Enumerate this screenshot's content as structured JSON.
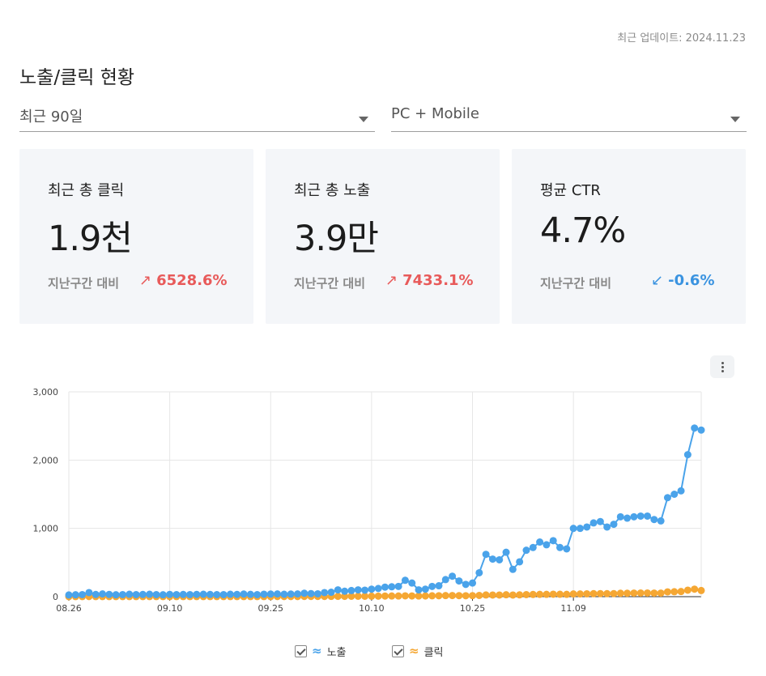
{
  "header": {
    "updated_label": "최근 업데이트:",
    "updated_value": "2024.11.23",
    "title": "노출/클릭 현황"
  },
  "filters": {
    "period": "최근 90일",
    "device": "PC + Mobile"
  },
  "cards": [
    {
      "label": "최근 총 클릭",
      "value": "1.9천",
      "compare_label": "지난구간 대비",
      "delta": "6528.6%",
      "direction": "up",
      "arrow": "↗"
    },
    {
      "label": "최근 총 노출",
      "value": "3.9만",
      "compare_label": "지난구간 대비",
      "delta": "7433.1%",
      "direction": "up",
      "arrow": "↗"
    },
    {
      "label": "평균 CTR",
      "value": "4.7%",
      "compare_label": "지난구간 대비",
      "delta": "-0.6%",
      "direction": "down",
      "arrow": "↙"
    }
  ],
  "colors": {
    "impressions": "#4aa3ea",
    "clicks": "#f5a733",
    "up": "#e85a5a",
    "down": "#3a93e0"
  },
  "legend": [
    {
      "label": "노출",
      "icon": "wave-icon",
      "checked": true
    },
    {
      "label": "클릭",
      "icon": "wave-icon",
      "checked": true
    }
  ],
  "chart_data": {
    "type": "line",
    "x_tick_labels": [
      "08.26",
      "09.10",
      "09.25",
      "10.10",
      "10.25",
      "11.09"
    ],
    "y_tick_labels": [
      "0",
      "1,000",
      "2,000",
      "3,000"
    ],
    "ylim": [
      0,
      3000
    ],
    "grid": true,
    "legend_position": "bottom-center",
    "series": [
      {
        "name": "노출",
        "values": [
          25,
          28,
          30,
          60,
          32,
          40,
          33,
          28,
          30,
          35,
          30,
          32,
          35,
          30,
          28,
          33,
          30,
          32,
          30,
          33,
          35,
          32,
          30,
          30,
          35,
          33,
          38,
          34,
          30,
          36,
          38,
          40,
          35,
          38,
          40,
          50,
          45,
          42,
          60,
          65,
          100,
          80,
          90,
          100,
          95,
          110,
          120,
          140,
          145,
          150,
          240,
          200,
          100,
          110,
          150,
          160,
          250,
          300,
          230,
          180,
          200,
          350,
          620,
          550,
          540,
          650,
          400,
          510,
          680,
          720,
          800,
          760,
          820,
          720,
          700,
          1000,
          1000,
          1020,
          1080,
          1100,
          1020,
          1060,
          1170,
          1150,
          1170,
          1180,
          1180,
          1130,
          1110,
          1450,
          1500,
          1550,
          2080,
          2470,
          2440
        ]
      },
      {
        "name": "클릭",
        "values": [
          0,
          1,
          1,
          2,
          1,
          1,
          1,
          1,
          1,
          1,
          1,
          1,
          1,
          1,
          1,
          1,
          1,
          1,
          1,
          1,
          1,
          1,
          1,
          1,
          1,
          1,
          1,
          1,
          1,
          1,
          1,
          2,
          2,
          2,
          2,
          3,
          3,
          3,
          3,
          4,
          5,
          5,
          6,
          6,
          6,
          7,
          8,
          9,
          10,
          10,
          12,
          11,
          10,
          11,
          13,
          14,
          16,
          17,
          15,
          14,
          15,
          18,
          25,
          24,
          24,
          28,
          24,
          26,
          30,
          32,
          34,
          34,
          36,
          35,
          34,
          40,
          40,
          42,
          44,
          45,
          44,
          45,
          50,
          50,
          52,
          54,
          54,
          52,
          52,
          70,
          72,
          75,
          95,
          110,
          90
        ]
      }
    ]
  }
}
